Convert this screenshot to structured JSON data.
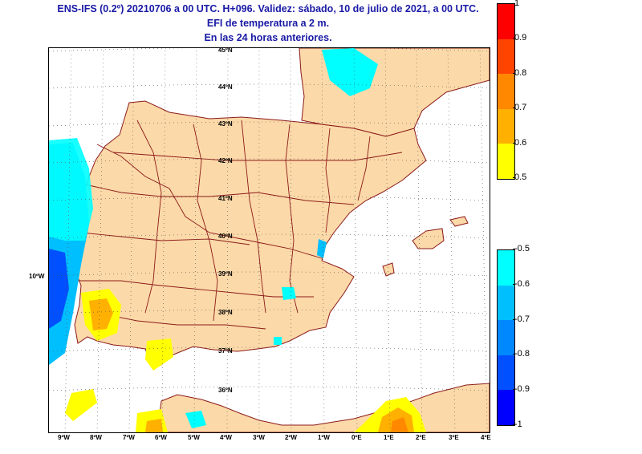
{
  "header": {
    "line1": "ENS-IFS (0.2º) 20210706 a 00 UTC. H+096. Validez: sábado, 10 de julio de 2021, a 00 UTC.",
    "line2": "EFI de temperatura a 2 m.",
    "line3": "En las 24 horas anteriores."
  },
  "map": {
    "lat_labels": [
      "45ºN",
      "44ºN",
      "43ºN",
      "42ºN",
      "41ºN",
      "40ºN",
      "39ºN",
      "38ºN",
      "37ºN",
      "36ºN"
    ],
    "lon_labels": [
      "9ºW",
      "8ºW",
      "7ºW",
      "6ºW",
      "5ºW",
      "4ºW",
      "3ºW",
      "2ºW",
      "1ºW",
      "0ºE",
      "1ºE",
      "2ºE",
      "3ºE",
      "4ºE"
    ],
    "side_label": "10ºW",
    "colors": {
      "land": "#fcd9a8",
      "sea": "#ffffff",
      "border": "#8b1a1a",
      "grid": "#555555"
    }
  },
  "colorbar_positive": {
    "ticks": [
      "1",
      "0.9",
      "0.8",
      "0.7",
      "0.6",
      "0.5"
    ],
    "colors": [
      "#ff0000",
      "#ff4400",
      "#ff8800",
      "#ffb000",
      "#ffff00"
    ]
  },
  "colorbar_negative": {
    "ticks": [
      "-0.5",
      "-0.6",
      "-0.7",
      "-0.8",
      "-0.9",
      "-1"
    ],
    "colors": [
      "#00ffff",
      "#00bfff",
      "#0088ff",
      "#0050ff",
      "#0000ff"
    ]
  }
}
